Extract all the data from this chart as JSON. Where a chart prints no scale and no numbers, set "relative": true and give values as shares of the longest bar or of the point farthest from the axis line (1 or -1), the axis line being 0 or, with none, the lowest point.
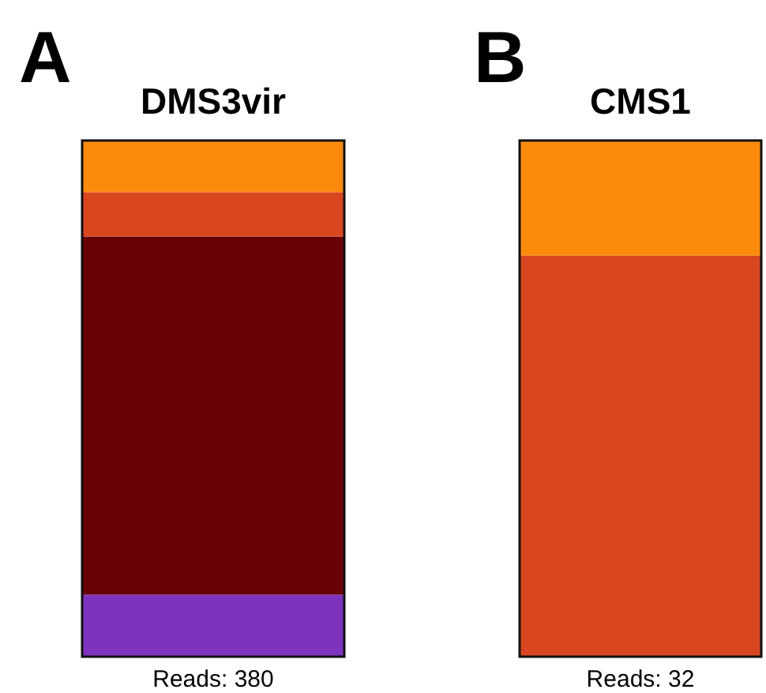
{
  "chart_data": [
    {
      "type": "bar",
      "title": "DMS3vir",
      "annotations": [
        "A",
        "Reads: 380"
      ],
      "categories": [
        null
      ],
      "stacked": true,
      "relative": true,
      "series": [
        {
          "color": "#7e33bf",
          "values": [
            0.12
          ]
        },
        {
          "color": "#690006",
          "values": [
            0.694
          ]
        },
        {
          "color": "#d94721",
          "values": [
            0.086
          ]
        },
        {
          "color": "#fa8b0c",
          "values": [
            0.1
          ]
        }
      ]
    },
    {
      "type": "bar",
      "title": "CMS1",
      "annotations": [
        "B",
        "Reads: 32"
      ],
      "categories": [
        null
      ],
      "stacked": true,
      "relative": true,
      "series": [
        {
          "color": "#d94721",
          "values": [
            0.777
          ]
        },
        {
          "color": "#fa8b0c",
          "values": [
            0.223
          ]
        }
      ]
    }
  ]
}
